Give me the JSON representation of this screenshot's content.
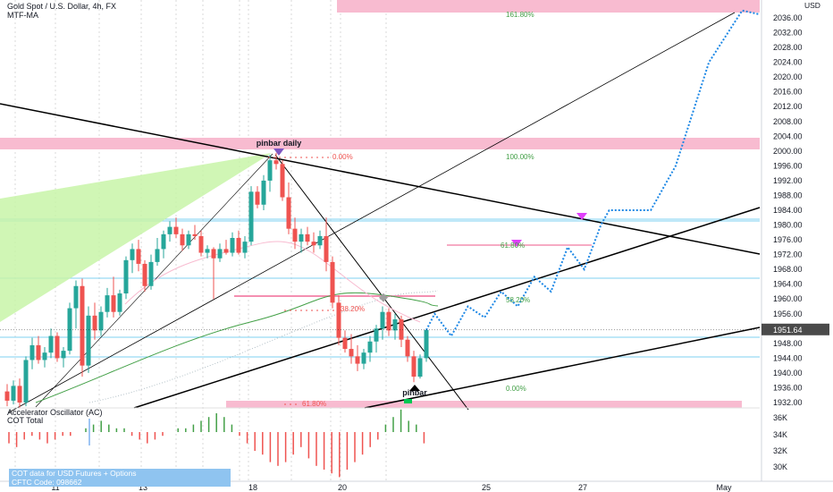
{
  "header": {
    "title": "Gold Spot / U.S. Dollar, 4h, FX",
    "indicator": "MTF-MA"
  },
  "price_axis": {
    "unit": "USD",
    "labels": [
      "2036.00",
      "2032.00",
      "2028.00",
      "2024.00",
      "2020.00",
      "2016.00",
      "2012.00",
      "2008.00",
      "2004.00",
      "2000.00",
      "1996.00",
      "1992.00",
      "1988.00",
      "1984.00",
      "1980.00",
      "1976.00",
      "1972.00",
      "1968.00",
      "1964.00",
      "1960.00",
      "1956.00",
      "1948.00",
      "1944.00",
      "1940.00",
      "1936.00",
      "1932.00"
    ],
    "current_price": "1951.64",
    "current_price_color": "#4a4a4a"
  },
  "time_axis": {
    "labels": [
      "11",
      "13",
      "18",
      "20",
      "25",
      "27",
      "May"
    ]
  },
  "oscillator": {
    "title": "Accelerator Oscillator (AC)",
    "subtitle": "COT Total",
    "labels": [
      "36K",
      "34K",
      "32K",
      "30K"
    ],
    "cot_note_line1": "COT data for USD Futures + Options",
    "cot_note_line2": "CFTC Code: 098662"
  },
  "annotations": {
    "pinbar_daily": "pinbar daily",
    "pinbar": "pinbar",
    "fib_0_left": "0.00%",
    "fib_1618": "161.80%",
    "fib_100": "100.00%",
    "fib_618_top": "61.80%",
    "fib_382": "38.20%",
    "fib_582": "58.20%",
    "fib_0_right": "0.00%",
    "fib_618_bottom": "61.80%"
  },
  "colors": {
    "up": "#26a69a",
    "down": "#ef5350",
    "zone": "#f8bbd0",
    "fill_green": "#c8f5a8",
    "projection": "#1e88e5",
    "marker_pink": "#e040fb"
  },
  "chart_data": {
    "type": "candlestick",
    "title": "Gold Spot / U.S. Dollar, 4h, FX",
    "ylabel": "USD",
    "ylim": [
      1928,
      2040
    ],
    "x_ticks": [
      "11",
      "13",
      "18",
      "20",
      "25",
      "27",
      "May"
    ],
    "candles": [
      {
        "o": 1935.0,
        "h": 1937.0,
        "l": 1931.0,
        "c": 1932.5
      },
      {
        "o": 1932.5,
        "h": 1938.0,
        "l": 1931.5,
        "c": 1936.5
      },
      {
        "o": 1936.5,
        "h": 1938.5,
        "l": 1930.5,
        "c": 1932.0
      },
      {
        "o": 1932.0,
        "h": 1944.5,
        "l": 1931.0,
        "c": 1943.5
      },
      {
        "o": 1943.5,
        "h": 1949.5,
        "l": 1941.0,
        "c": 1947.5
      },
      {
        "o": 1947.5,
        "h": 1950.0,
        "l": 1942.5,
        "c": 1943.5
      },
      {
        "o": 1943.5,
        "h": 1947.0,
        "l": 1941.5,
        "c": 1945.5
      },
      {
        "o": 1945.5,
        "h": 1952.0,
        "l": 1944.0,
        "c": 1950.0
      },
      {
        "o": 1950.0,
        "h": 1951.0,
        "l": 1943.0,
        "c": 1944.0
      },
      {
        "o": 1944.0,
        "h": 1947.0,
        "l": 1941.5,
        "c": 1946.0
      },
      {
        "o": 1946.0,
        "h": 1959.0,
        "l": 1945.0,
        "c": 1957.5
      },
      {
        "o": 1957.5,
        "h": 1965.0,
        "l": 1952.0,
        "c": 1963.5
      },
      {
        "o": 1963.5,
        "h": 1965.5,
        "l": 1939.0,
        "c": 1942.0
      },
      {
        "o": 1942.0,
        "h": 1958.0,
        "l": 1940.0,
        "c": 1955.5
      },
      {
        "o": 1955.5,
        "h": 1959.0,
        "l": 1949.0,
        "c": 1951.5
      },
      {
        "o": 1951.5,
        "h": 1958.0,
        "l": 1950.0,
        "c": 1956.5
      },
      {
        "o": 1956.5,
        "h": 1963.0,
        "l": 1955.0,
        "c": 1961.0
      },
      {
        "o": 1961.0,
        "h": 1966.0,
        "l": 1955.0,
        "c": 1956.5
      },
      {
        "o": 1956.5,
        "h": 1962.5,
        "l": 1955.5,
        "c": 1961.5
      },
      {
        "o": 1961.5,
        "h": 1971.5,
        "l": 1960.0,
        "c": 1970.5
      },
      {
        "o": 1970.5,
        "h": 1975.0,
        "l": 1967.0,
        "c": 1973.5
      },
      {
        "o": 1973.5,
        "h": 1976.0,
        "l": 1967.5,
        "c": 1969.5
      },
      {
        "o": 1969.5,
        "h": 1970.5,
        "l": 1962.0,
        "c": 1963.5
      },
      {
        "o": 1963.5,
        "h": 1972.0,
        "l": 1962.5,
        "c": 1970.0
      },
      {
        "o": 1970.0,
        "h": 1976.5,
        "l": 1969.0,
        "c": 1973.5
      },
      {
        "o": 1973.5,
        "h": 1978.5,
        "l": 1971.0,
        "c": 1977.5
      },
      {
        "o": 1977.5,
        "h": 1981.0,
        "l": 1975.5,
        "c": 1979.5
      },
      {
        "o": 1979.5,
        "h": 1982.0,
        "l": 1976.5,
        "c": 1977.5
      },
      {
        "o": 1977.5,
        "h": 1979.0,
        "l": 1973.0,
        "c": 1974.5
      },
      {
        "o": 1974.5,
        "h": 1978.5,
        "l": 1973.5,
        "c": 1977.5
      },
      {
        "o": 1977.5,
        "h": 1980.0,
        "l": 1976.0,
        "c": 1977.0
      },
      {
        "o": 1977.0,
        "h": 1978.5,
        "l": 1971.5,
        "c": 1972.5
      },
      {
        "o": 1972.5,
        "h": 1974.5,
        "l": 1971.0,
        "c": 1973.5
      },
      {
        "o": 1973.5,
        "h": 1974.0,
        "l": 1960.0,
        "c": 1971.0
      },
      {
        "o": 1971.0,
        "h": 1975.0,
        "l": 1970.0,
        "c": 1973.5
      },
      {
        "o": 1973.5,
        "h": 1976.0,
        "l": 1972.0,
        "c": 1972.5
      },
      {
        "o": 1972.5,
        "h": 1978.0,
        "l": 1971.5,
        "c": 1976.5
      },
      {
        "o": 1976.5,
        "h": 1978.5,
        "l": 1972.0,
        "c": 1972.5
      },
      {
        "o": 1972.5,
        "h": 1977.0,
        "l": 1971.0,
        "c": 1975.5
      },
      {
        "o": 1975.5,
        "h": 1990.5,
        "l": 1974.5,
        "c": 1989.0
      },
      {
        "o": 1989.0,
        "h": 1990.5,
        "l": 1984.5,
        "c": 1985.5
      },
      {
        "o": 1985.5,
        "h": 1993.5,
        "l": 1984.0,
        "c": 1992.0
      },
      {
        "o": 1992.0,
        "h": 1999.0,
        "l": 1989.0,
        "c": 1997.5
      },
      {
        "o": 1997.5,
        "h": 1999.5,
        "l": 1995.0,
        "c": 1996.5
      },
      {
        "o": 1996.5,
        "h": 1997.5,
        "l": 1986.5,
        "c": 1987.5
      },
      {
        "o": 1987.5,
        "h": 1991.5,
        "l": 1977.5,
        "c": 1979.0
      },
      {
        "o": 1979.0,
        "h": 1982.0,
        "l": 1973.5,
        "c": 1975.5
      },
      {
        "o": 1975.5,
        "h": 1979.0,
        "l": 1972.5,
        "c": 1977.5
      },
      {
        "o": 1977.5,
        "h": 1979.5,
        "l": 1974.5,
        "c": 1975.5
      },
      {
        "o": 1975.5,
        "h": 1978.0,
        "l": 1972.5,
        "c": 1974.5
      },
      {
        "o": 1974.5,
        "h": 1978.5,
        "l": 1973.5,
        "c": 1977.0
      },
      {
        "o": 1977.0,
        "h": 1982.0,
        "l": 1967.5,
        "c": 1970.0
      },
      {
        "o": 1970.0,
        "h": 1971.5,
        "l": 1957.5,
        "c": 1959.0
      },
      {
        "o": 1959.0,
        "h": 1961.0,
        "l": 1947.5,
        "c": 1949.5
      },
      {
        "o": 1949.5,
        "h": 1951.5,
        "l": 1945.5,
        "c": 1946.5
      },
      {
        "o": 1946.5,
        "h": 1950.5,
        "l": 1942.5,
        "c": 1944.5
      },
      {
        "o": 1944.5,
        "h": 1947.5,
        "l": 1940.5,
        "c": 1942.5
      },
      {
        "o": 1942.5,
        "h": 1946.5,
        "l": 1941.0,
        "c": 1945.5
      },
      {
        "o": 1945.5,
        "h": 1950.0,
        "l": 1943.0,
        "c": 1948.5
      },
      {
        "o": 1948.5,
        "h": 1953.0,
        "l": 1945.5,
        "c": 1952.0
      },
      {
        "o": 1952.0,
        "h": 1958.0,
        "l": 1949.0,
        "c": 1956.5
      },
      {
        "o": 1956.5,
        "h": 1957.5,
        "l": 1950.0,
        "c": 1951.5
      },
      {
        "o": 1951.5,
        "h": 1956.0,
        "l": 1949.0,
        "c": 1954.5
      },
      {
        "o": 1954.5,
        "h": 1955.5,
        "l": 1947.0,
        "c": 1949.0
      },
      {
        "o": 1949.0,
        "h": 1950.0,
        "l": 1943.0,
        "c": 1944.5
      },
      {
        "o": 1944.5,
        "h": 1946.0,
        "l": 1937.5,
        "c": 1939.0
      },
      {
        "o": 1939.0,
        "h": 1945.0,
        "l": 1938.5,
        "c": 1944.0
      },
      {
        "o": 1944.0,
        "h": 1952.0,
        "l": 1943.0,
        "c": 1951.6
      }
    ],
    "projection_path": [
      [
        1951.6,
        0
      ],
      [
        1956,
        1
      ],
      [
        1950,
        3
      ],
      [
        1958,
        5
      ],
      [
        1955,
        7
      ],
      [
        1962,
        9
      ],
      [
        1958,
        11
      ],
      [
        1966,
        13
      ],
      [
        1962,
        15
      ],
      [
        1974,
        17
      ],
      [
        1968,
        19
      ],
      [
        1980,
        21
      ],
      [
        1984,
        22
      ],
      [
        1984,
        27
      ],
      [
        1996,
        30
      ],
      [
        2024,
        34
      ],
      [
        2038,
        38
      ],
      [
        2037,
        40
      ]
    ]
  }
}
